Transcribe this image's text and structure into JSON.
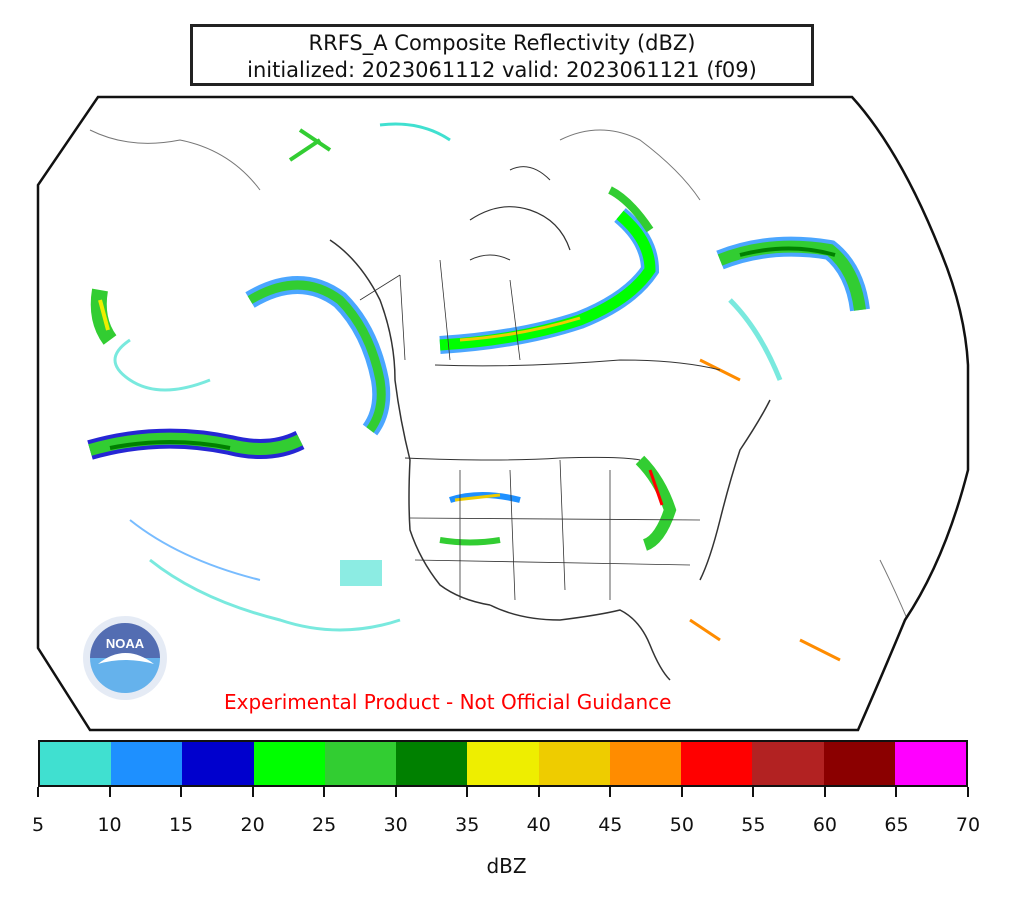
{
  "title": {
    "line1": "RRFS_A Composite Reflectivity (dBZ)",
    "line2": "initialized: 2023061112 valid: 2023061121 (f09)"
  },
  "disclaimer": "Experimental Product - Not Official Guidance",
  "logo": {
    "icon": "noaa-logo",
    "text": "NOAA"
  },
  "colorbar": {
    "label": "dBZ",
    "ticks": [
      "5",
      "10",
      "15",
      "20",
      "25",
      "30",
      "35",
      "40",
      "45",
      "50",
      "55",
      "60",
      "65",
      "70"
    ],
    "colors": [
      "#40e0d0",
      "#1e90ff",
      "#0000cd",
      "#00ff00",
      "#32cd32",
      "#008000",
      "#eeee00",
      "#eecc00",
      "#ff8c00",
      "#ff0000",
      "#b22222",
      "#8b0000",
      "#ff00ff"
    ]
  },
  "colors": {
    "disclaimer": "#ff0000",
    "border": "#111111"
  }
}
